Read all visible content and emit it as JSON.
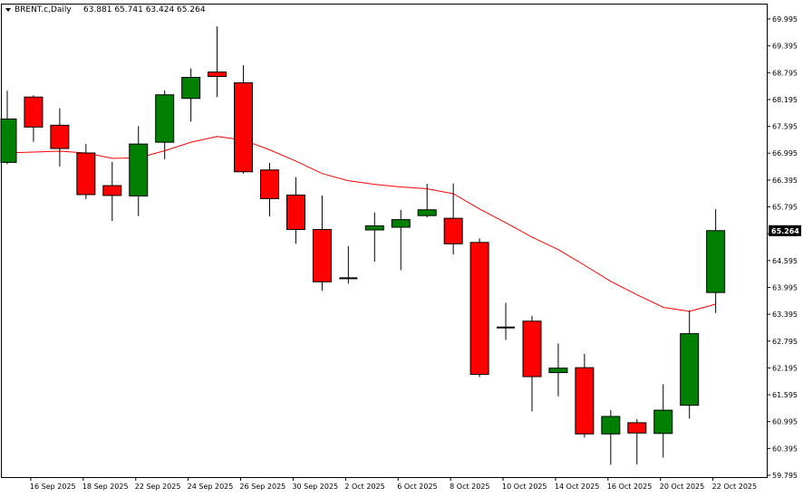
{
  "header": {
    "symbol": "BRENT.c,Daily",
    "ohlc": "63.881 65.741 63.424 65.264",
    "menu_icon": "triangle-down-icon"
  },
  "current_price_label": "65.264",
  "chart_data": {
    "type": "candlestick",
    "symbol": "BRENT.c",
    "timeframe": "Daily",
    "ylim": [
      59.7,
      70.3
    ],
    "y_ticks": [
      "69.995",
      "69.395",
      "68.795",
      "68.195",
      "67.595",
      "66.995",
      "66.395",
      "65.795",
      "65.195",
      "64.595",
      "63.995",
      "63.395",
      "62.795",
      "62.195",
      "61.595",
      "60.995",
      "60.395",
      "59.795"
    ],
    "x_tick_labels": [
      "16 Sep 2025",
      "18 Sep 2025",
      "22 Sep 2025",
      "24 Sep 2025",
      "26 Sep 2025",
      "30 Sep 2025",
      "2 Oct 2025",
      "6 Oct 2025",
      "8 Oct 2025",
      "10 Oct 2025",
      "14 Oct 2025",
      "16 Oct 2025",
      "20 Oct 2025",
      "22 Oct 2025"
    ],
    "colors": {
      "bull": "#008000",
      "bear": "#ff0000",
      "ma": "#ff0000",
      "doji": "#000000"
    },
    "candles": [
      {
        "date": "15 Sep 2025",
        "o": 66.79,
        "h": 68.39,
        "l": 66.75,
        "c": 67.76
      },
      {
        "date": "16 Sep 2025",
        "o": 68.25,
        "h": 68.29,
        "l": 67.25,
        "c": 67.58
      },
      {
        "date": "17 Sep 2025",
        "o": 67.62,
        "h": 68.0,
        "l": 66.7,
        "c": 67.1
      },
      {
        "date": "18 Sep 2025",
        "o": 67.0,
        "h": 67.2,
        "l": 65.97,
        "c": 66.07
      },
      {
        "date": "19 Sep 2025",
        "o": 66.27,
        "h": 66.8,
        "l": 65.48,
        "c": 66.05
      },
      {
        "date": "22 Sep 2025",
        "o": 66.04,
        "h": 67.6,
        "l": 65.59,
        "c": 67.2
      },
      {
        "date": "23 Sep 2025",
        "o": 67.24,
        "h": 68.4,
        "l": 66.86,
        "c": 68.3
      },
      {
        "date": "24 Sep 2025",
        "o": 68.22,
        "h": 68.89,
        "l": 67.7,
        "c": 68.69
      },
      {
        "date": "25 Sep 2025",
        "o": 68.81,
        "h": 69.83,
        "l": 68.25,
        "c": 68.71
      },
      {
        "date": "26 Sep 2025",
        "o": 68.57,
        "h": 68.96,
        "l": 66.54,
        "c": 66.58
      },
      {
        "date": "29 Sep 2025",
        "o": 66.62,
        "h": 66.78,
        "l": 65.58,
        "c": 65.98
      },
      {
        "date": "30 Sep 2025",
        "o": 66.06,
        "h": 66.46,
        "l": 64.97,
        "c": 65.29
      },
      {
        "date": "1 Oct 2025",
        "o": 65.29,
        "h": 66.05,
        "l": 63.92,
        "c": 64.12
      },
      {
        "date": "2 Oct 2025",
        "o": 64.2,
        "h": 64.92,
        "l": 64.08,
        "c": 64.2
      },
      {
        "date": "3 Oct 2025",
        "o": 65.28,
        "h": 65.67,
        "l": 64.57,
        "c": 65.37
      },
      {
        "date": "6 Oct 2025",
        "o": 65.34,
        "h": 65.73,
        "l": 64.38,
        "c": 65.51
      },
      {
        "date": "7 Oct 2025",
        "o": 65.6,
        "h": 66.31,
        "l": 65.56,
        "c": 65.73
      },
      {
        "date": "8 Oct 2025",
        "o": 65.54,
        "h": 66.32,
        "l": 64.73,
        "c": 64.97
      },
      {
        "date": "9 Oct 2025",
        "o": 65.0,
        "h": 65.09,
        "l": 61.99,
        "c": 62.05
      },
      {
        "date": "10 Oct 2025",
        "o": 63.1,
        "h": 63.65,
        "l": 62.82,
        "c": 63.06
      },
      {
        "date": "13 Oct 2025",
        "o": 63.24,
        "h": 63.36,
        "l": 61.22,
        "c": 62.0
      },
      {
        "date": "14 Oct 2025",
        "o": 62.09,
        "h": 62.74,
        "l": 61.56,
        "c": 62.19
      },
      {
        "date": "15 Oct 2025",
        "o": 62.2,
        "h": 62.51,
        "l": 60.64,
        "c": 60.72
      },
      {
        "date": "16 Oct 2025",
        "o": 60.72,
        "h": 61.25,
        "l": 60.03,
        "c": 61.11
      },
      {
        "date": "17 Oct 2025",
        "o": 60.97,
        "h": 61.05,
        "l": 60.04,
        "c": 60.74
      },
      {
        "date": "20 Oct 2025",
        "o": 60.73,
        "h": 61.83,
        "l": 60.19,
        "c": 61.25
      },
      {
        "date": "21 Oct 2025",
        "o": 61.36,
        "h": 63.48,
        "l": 61.06,
        "c": 62.96
      },
      {
        "date": "22 Oct 2025",
        "o": 63.881,
        "h": 65.741,
        "l": 63.424,
        "c": 65.264
      }
    ],
    "moving_average": [
      67.0,
      67.02,
      67.04,
      67.0,
      66.88,
      66.89,
      67.05,
      67.24,
      67.37,
      67.29,
      67.07,
      66.82,
      66.54,
      66.38,
      66.3,
      66.24,
      66.2,
      66.09,
      65.75,
      65.44,
      65.12,
      64.84,
      64.49,
      64.13,
      63.83,
      63.55,
      63.46,
      63.62
    ]
  }
}
